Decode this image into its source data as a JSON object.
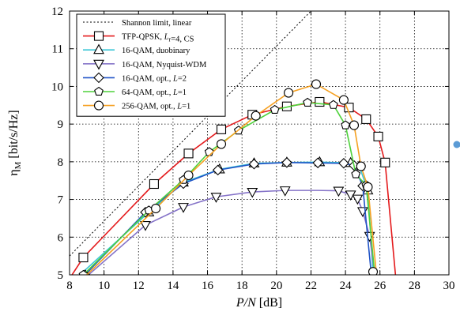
{
  "chart_data": {
    "type": "line",
    "xlabel_main": "P/N",
    "xlabel_unit": " [dB]",
    "ylabel_main": "η",
    "ylabel_sub": "M",
    "ylabel_unit": " [bit/s/Hz]",
    "xlim": [
      8,
      30
    ],
    "ylim": [
      5,
      12
    ],
    "xticks": [
      8,
      10,
      12,
      14,
      16,
      18,
      20,
      22,
      24,
      26,
      28,
      30
    ],
    "yticks": [
      5,
      6,
      7,
      8,
      9,
      10,
      11,
      12
    ],
    "grid": true,
    "legend_position": "top-left",
    "series": [
      {
        "name": "Shannon limit, linear",
        "legend_parts": [
          [
            "Shannon limit, linear",
            ""
          ]
        ],
        "color": "#000000",
        "marker": "none",
        "dash": "dotted",
        "x": [
          8,
          22
        ],
        "y": [
          5.5,
          12.0
        ]
      },
      {
        "name": "TFP-QPSK, Lr=4, CS",
        "legend_parts": [
          [
            "TFP-QPSK, ",
            ""
          ],
          [
            "L",
            "i"
          ],
          [
            "r",
            "sub"
          ],
          [
            "=4, CS",
            ""
          ]
        ],
        "color": "#e41a1c",
        "marker": "square",
        "dash": "solid",
        "x": [
          8.0,
          8.8,
          12.9,
          14.9,
          16.8,
          18.6,
          20.6,
          22.5,
          24.2,
          25.2,
          25.9,
          26.3,
          26.9
        ],
        "y": [
          4.9,
          5.46,
          7.41,
          8.22,
          8.86,
          9.25,
          9.47,
          9.59,
          9.44,
          9.13,
          8.67,
          7.98,
          5.0
        ],
        "marker_x": [
          8.8,
          12.9,
          14.9,
          16.8,
          18.6,
          20.6,
          22.5,
          24.2,
          25.2,
          25.9,
          26.3
        ],
        "marker_y": [
          5.46,
          7.41,
          8.22,
          8.86,
          9.25,
          9.47,
          9.59,
          9.44,
          9.13,
          8.67,
          7.98
        ]
      },
      {
        "name": "16-QAM, duobinary",
        "legend_parts": [
          [
            "16-QAM, duobinary",
            ""
          ]
        ],
        "color": "#3bc6d6",
        "marker": "triangle-up",
        "dash": "solid",
        "x": [
          8.6,
          12.6,
          14.6,
          16.7,
          18.7,
          20.6,
          22.5,
          24.3,
          24.8,
          25.3,
          25.6
        ],
        "y": [
          5.0,
          6.66,
          7.45,
          7.8,
          7.96,
          7.98,
          7.99,
          7.97,
          7.88,
          7.24,
          5.0
        ],
        "marker_x": [
          12.6,
          14.6,
          16.7,
          18.7,
          20.6,
          22.5,
          24.3,
          24.8,
          25.3
        ],
        "marker_y": [
          6.66,
          7.45,
          7.8,
          7.96,
          7.98,
          7.99,
          7.97,
          7.88,
          7.24
        ]
      },
      {
        "name": "16-QAM, Nyquist-WDM",
        "legend_parts": [
          [
            "16-QAM, Nyquist-WDM",
            ""
          ]
        ],
        "color": "#8573c8",
        "marker": "triangle-down",
        "dash": "solid",
        "x": [
          9.1,
          12.4,
          14.6,
          16.5,
          18.6,
          20.5,
          22.4,
          23.6,
          24.3,
          24.7,
          25.0,
          25.4,
          25.7
        ],
        "y": [
          5.0,
          6.32,
          6.8,
          7.07,
          7.2,
          7.24,
          7.24,
          7.23,
          7.13,
          7.02,
          6.69,
          6.03,
          5.0
        ],
        "marker_x": [
          12.4,
          14.6,
          16.5,
          18.6,
          20.5,
          23.6,
          24.3,
          24.7,
          25.0,
          25.4
        ],
        "marker_y": [
          6.32,
          6.8,
          7.07,
          7.2,
          7.24,
          7.23,
          7.13,
          7.02,
          6.69,
          6.03
        ]
      },
      {
        "name": "16-QAM, opt., L=2",
        "legend_parts": [
          [
            "16-QAM, opt., ",
            ""
          ],
          [
            "L",
            "i"
          ],
          [
            "=2",
            ""
          ]
        ],
        "color": "#2154c7",
        "marker": "diamond",
        "dash": "solid",
        "x": [
          8.9,
          12.4,
          14.6,
          16.6,
          18.7,
          20.6,
          22.4,
          23.9,
          24.5,
          25.0,
          25.5
        ],
        "y": [
          5.0,
          6.66,
          7.42,
          7.78,
          7.94,
          7.98,
          7.97,
          7.96,
          7.9,
          7.36,
          5.0
        ],
        "marker_x": [
          8.9,
          12.4,
          14.6,
          16.6,
          18.7,
          20.6,
          22.4,
          23.9,
          24.5,
          25.0
        ],
        "marker_y": [
          5.0,
          6.66,
          7.42,
          7.78,
          7.94,
          7.98,
          7.97,
          7.96,
          7.9,
          7.36
        ]
      },
      {
        "name": "64-QAM, opt., L=1",
        "legend_parts": [
          [
            "64-QAM, opt., ",
            ""
          ],
          [
            "L",
            "i"
          ],
          [
            "=1",
            ""
          ]
        ],
        "color": "#4fd23c",
        "marker": "pentagon",
        "dash": "solid",
        "x": [
          8.8,
          12.6,
          14.6,
          16.1,
          17.8,
          19.9,
          21.8,
          23.3,
          24.0,
          24.6,
          25.2,
          25.7
        ],
        "y": [
          5.0,
          6.71,
          7.52,
          8.26,
          8.83,
          9.38,
          9.57,
          9.51,
          8.97,
          7.67,
          7.38,
          5.0
        ],
        "marker_x": [
          8.8,
          12.6,
          14.6,
          16.1,
          17.8,
          19.9,
          21.8,
          23.3,
          24.0,
          24.6,
          25.2
        ],
        "marker_y": [
          5.0,
          6.71,
          7.52,
          8.26,
          8.83,
          9.38,
          9.57,
          9.51,
          8.97,
          7.67,
          7.38
        ]
      },
      {
        "name": "256-QAM, opt., L=1",
        "legend_parts": [
          [
            "256-QAM, opt., ",
            ""
          ],
          [
            "L",
            "i"
          ],
          [
            "=1",
            ""
          ]
        ],
        "color": "#f5a020",
        "marker": "circle",
        "dash": "solid",
        "x": [
          9.0,
          13.0,
          14.9,
          16.8,
          18.8,
          20.7,
          22.3,
          23.9,
          24.5,
          24.9,
          25.3,
          25.8
        ],
        "y": [
          5.0,
          6.76,
          7.64,
          8.47,
          9.22,
          9.83,
          10.06,
          9.64,
          8.97,
          7.88,
          7.33,
          5.0
        ],
        "marker_x": [
          13.0,
          14.9,
          16.8,
          18.8,
          20.7,
          22.3,
          23.9,
          24.5,
          24.9,
          25.3,
          25.6
        ],
        "marker_y": [
          6.76,
          7.64,
          8.47,
          9.22,
          9.83,
          10.06,
          9.64,
          8.97,
          7.88,
          7.33,
          5.08
        ]
      }
    ]
  }
}
